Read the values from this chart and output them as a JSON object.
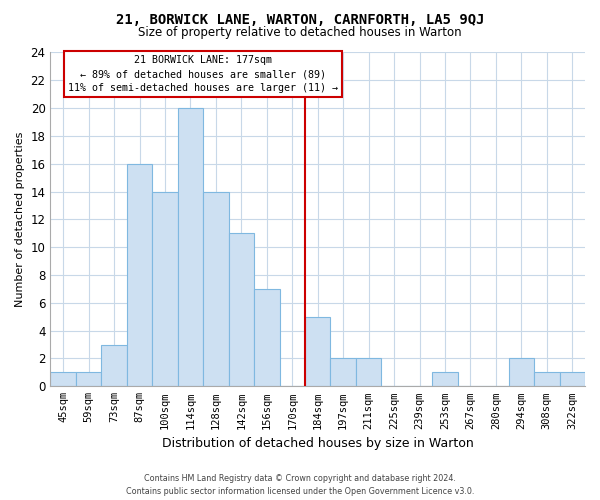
{
  "title": "21, BORWICK LANE, WARTON, CARNFORTH, LA5 9QJ",
  "subtitle": "Size of property relative to detached houses in Warton",
  "xlabel": "Distribution of detached houses by size in Warton",
  "ylabel": "Number of detached properties",
  "bar_labels": [
    "45sqm",
    "59sqm",
    "73sqm",
    "87sqm",
    "100sqm",
    "114sqm",
    "128sqm",
    "142sqm",
    "156sqm",
    "170sqm",
    "184sqm",
    "197sqm",
    "211sqm",
    "225sqm",
    "239sqm",
    "253sqm",
    "267sqm",
    "280sqm",
    "294sqm",
    "308sqm",
    "322sqm"
  ],
  "bar_values": [
    1,
    1,
    3,
    16,
    14,
    20,
    14,
    11,
    7,
    0,
    5,
    2,
    2,
    0,
    0,
    1,
    0,
    0,
    2,
    1,
    1
  ],
  "bar_color": "#cde0f2",
  "bar_edge_color": "#7fb8e0",
  "vline_x_idx": 10,
  "vline_color": "#cc0000",
  "annotation_title": "21 BORWICK LANE: 177sqm",
  "annotation_line1": "← 89% of detached houses are smaller (89)",
  "annotation_line2": "11% of semi-detached houses are larger (11) →",
  "annotation_box_color": "#ffffff",
  "annotation_box_edge": "#cc0000",
  "ylim": [
    0,
    24
  ],
  "yticks": [
    0,
    2,
    4,
    6,
    8,
    10,
    12,
    14,
    16,
    18,
    20,
    22,
    24
  ],
  "footer1": "Contains HM Land Registry data © Crown copyright and database right 2024.",
  "footer2": "Contains public sector information licensed under the Open Government Licence v3.0.",
  "background_color": "#ffffff",
  "grid_color": "#c8d8e8"
}
